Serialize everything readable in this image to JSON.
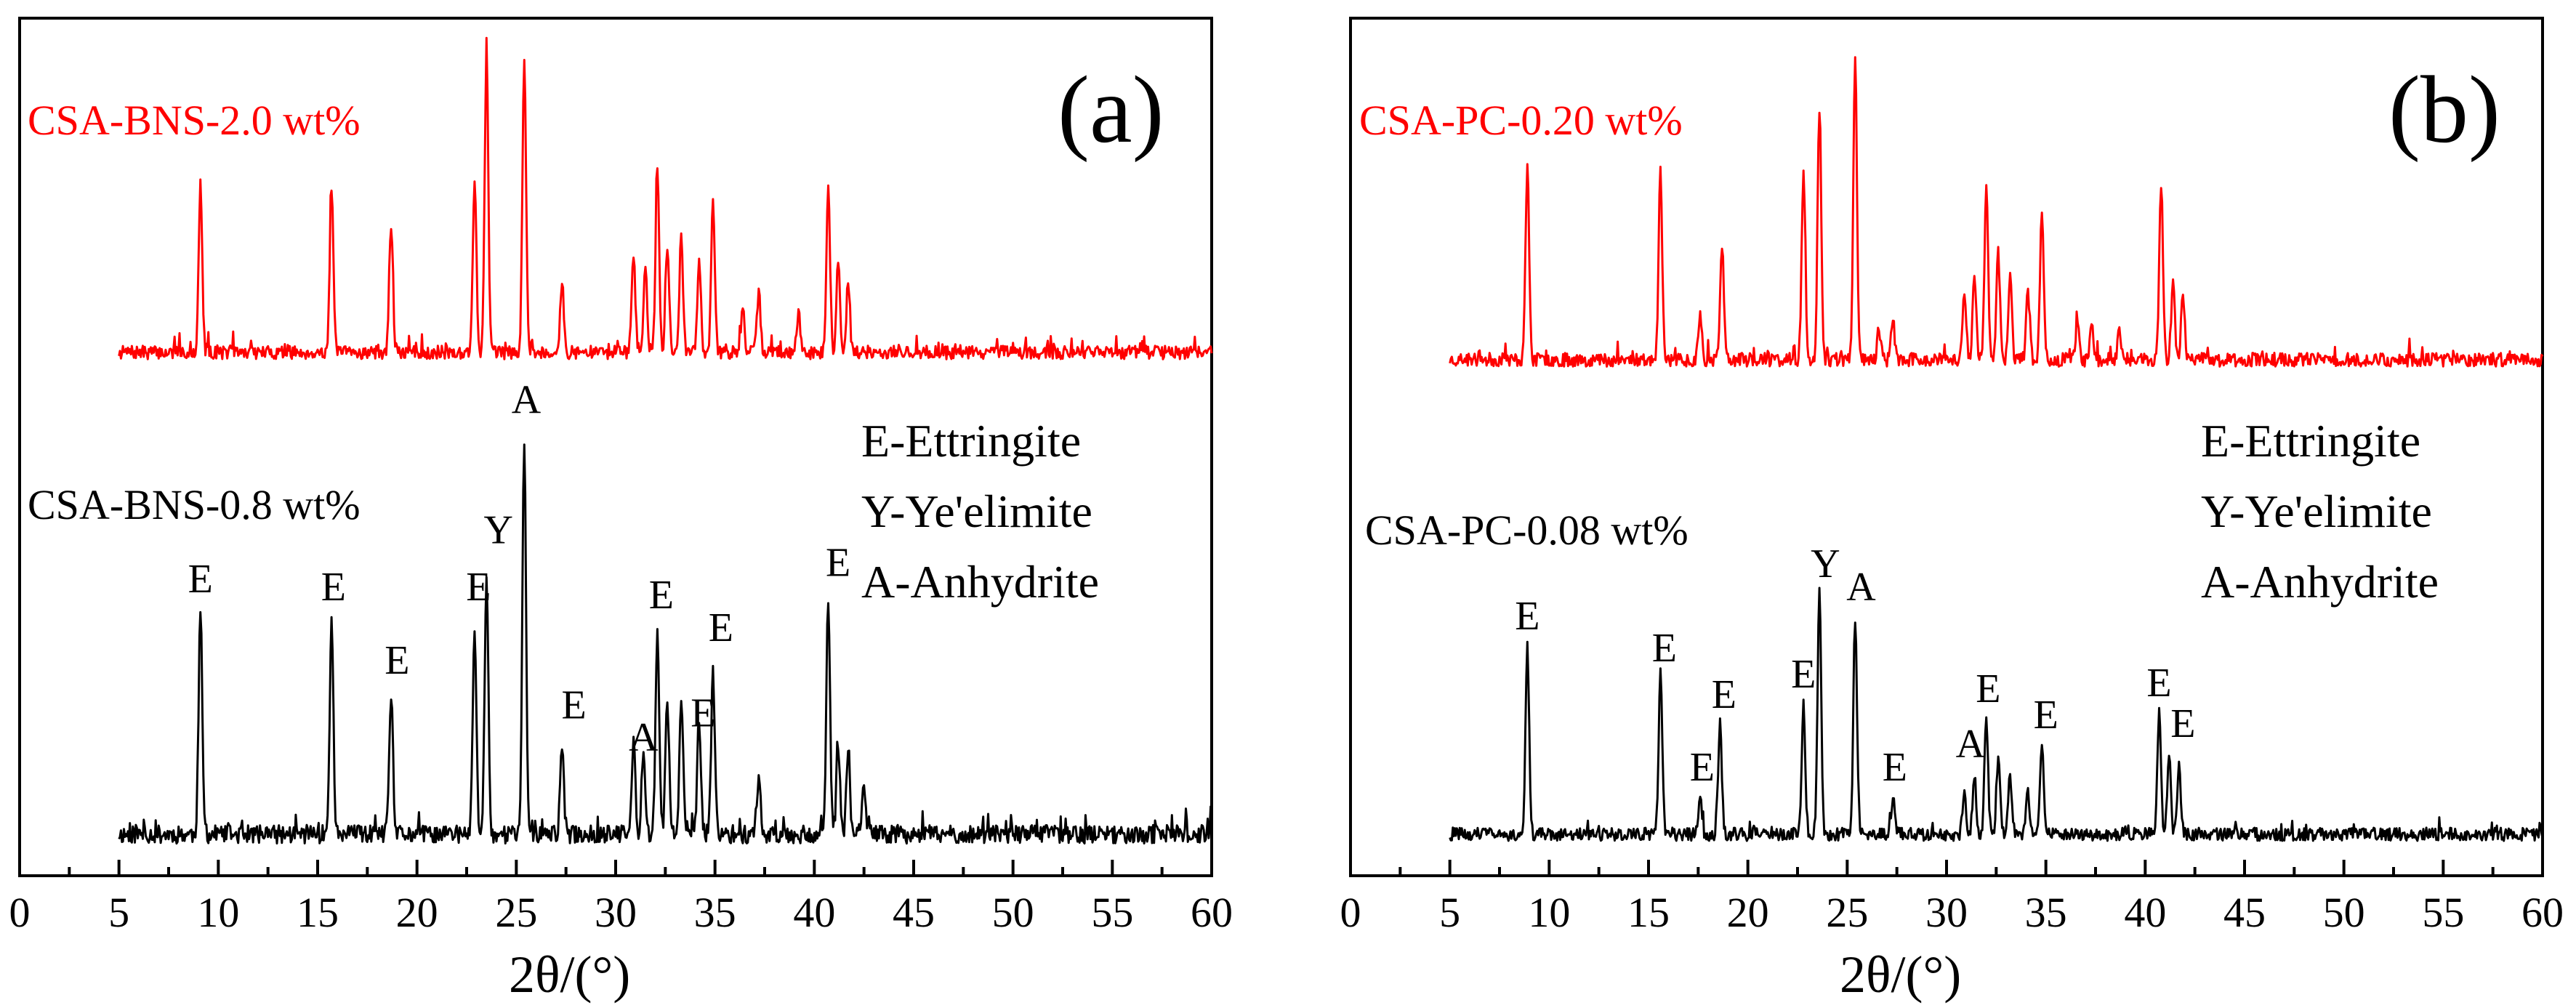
{
  "chart_data": [
    {
      "type": "line",
      "panel_label": "(a)",
      "xlabel": "2θ/(°)",
      "xlim": [
        0,
        60
      ],
      "x_ticks": [
        0,
        5,
        10,
        15,
        20,
        25,
        30,
        35,
        40,
        45,
        50,
        55,
        60
      ],
      "colors": {
        "top": "#ff0000",
        "bottom": "#000000"
      },
      "series": [
        {
          "name": "CSA-BNS-2.0 wt%",
          "role": "top",
          "peaks": [
            [
              9.1,
              0.55
            ],
            [
              15.7,
              0.55
            ],
            [
              18.7,
              0.43
            ],
            [
              22.9,
              0.58
            ],
            [
              23.5,
              1.0
            ],
            [
              25.4,
              1.0
            ],
            [
              27.3,
              0.23
            ],
            [
              30.9,
              0.33
            ],
            [
              31.5,
              0.28
            ],
            [
              32.1,
              0.63
            ],
            [
              32.6,
              0.35
            ],
            [
              33.3,
              0.38
            ],
            [
              34.2,
              0.31
            ],
            [
              34.9,
              0.52
            ],
            [
              36.4,
              0.14
            ],
            [
              37.2,
              0.2
            ],
            [
              39.2,
              0.13
            ],
            [
              40.7,
              0.55
            ],
            [
              41.2,
              0.3
            ],
            [
              41.7,
              0.22
            ]
          ],
          "seed": 7
        },
        {
          "name": "CSA-BNS-0.8 wt%",
          "role": "bottom",
          "peaks": [
            [
              9.1,
              0.55
            ],
            [
              15.7,
              0.53
            ],
            [
              18.7,
              0.34
            ],
            [
              22.9,
              0.51
            ],
            [
              23.5,
              0.65
            ],
            [
              25.4,
              0.97
            ],
            [
              27.3,
              0.22
            ],
            [
              30.9,
              0.22
            ],
            [
              31.4,
              0.22
            ],
            [
              32.1,
              0.5
            ],
            [
              32.6,
              0.33
            ],
            [
              33.3,
              0.35
            ],
            [
              34.2,
              0.28
            ],
            [
              34.9,
              0.4
            ],
            [
              37.2,
              0.14
            ],
            [
              40.7,
              0.58
            ],
            [
              41.2,
              0.22
            ],
            [
              41.7,
              0.2
            ],
            [
              42.5,
              0.12
            ]
          ],
          "seed": 11
        }
      ],
      "peak_labels": [
        {
          "text": "E",
          "x": 9.1,
          "y": 0.57
        },
        {
          "text": "E",
          "x": 15.8,
          "y": 0.55
        },
        {
          "text": "E",
          "x": 19.0,
          "y": 0.37
        },
        {
          "text": "E",
          "x": 23.1,
          "y": 0.55
        },
        {
          "text": "Y",
          "x": 24.1,
          "y": 0.69
        },
        {
          "text": "A",
          "x": 25.5,
          "y": 1.01
        },
        {
          "text": "E",
          "x": 27.9,
          "y": 0.26
        },
        {
          "text": "A",
          "x": 31.4,
          "y": 0.18
        },
        {
          "text": "E",
          "x": 32.3,
          "y": 0.53
        },
        {
          "text": "E",
          "x": 34.4,
          "y": 0.24
        },
        {
          "text": "E",
          "x": 35.3,
          "y": 0.45
        },
        {
          "text": "E",
          "x": 41.2,
          "y": 0.61
        }
      ]
    },
    {
      "type": "line",
      "panel_label": "(b)",
      "xlabel": "2θ/(°)",
      "xlim": [
        0,
        60
      ],
      "x_ticks": [
        0,
        5,
        10,
        15,
        20,
        25,
        30,
        35,
        40,
        45,
        50,
        55,
        60
      ],
      "colors": {
        "top": "#ff0000",
        "bottom": "#000000"
      },
      "series": [
        {
          "name": "CSA-PC-0.20 wt%",
          "role": "top",
          "peaks": [
            [
              8.9,
              0.63
            ],
            [
              15.6,
              0.61
            ],
            [
              17.6,
              0.14
            ],
            [
              18.7,
              0.38
            ],
            [
              22.8,
              0.62
            ],
            [
              23.6,
              0.81
            ],
            [
              25.4,
              1.0
            ],
            [
              26.6,
              0.1
            ],
            [
              27.3,
              0.13
            ],
            [
              30.9,
              0.23
            ],
            [
              31.4,
              0.27
            ],
            [
              32.0,
              0.56
            ],
            [
              32.6,
              0.35
            ],
            [
              33.2,
              0.27
            ],
            [
              34.1,
              0.22
            ],
            [
              34.8,
              0.48
            ],
            [
              36.6,
              0.12
            ],
            [
              37.3,
              0.13
            ],
            [
              38.7,
              0.1
            ],
            [
              40.8,
              0.58
            ],
            [
              41.4,
              0.24
            ],
            [
              41.9,
              0.22
            ]
          ],
          "seed": 23
        },
        {
          "name": "CSA-PC-0.08 wt%",
          "role": "bottom",
          "peaks": [
            [
              8.9,
              0.65
            ],
            [
              15.6,
              0.55
            ],
            [
              17.6,
              0.12
            ],
            [
              18.6,
              0.38
            ],
            [
              22.8,
              0.45
            ],
            [
              23.6,
              0.83
            ],
            [
              25.4,
              0.75
            ],
            [
              27.3,
              0.12
            ],
            [
              30.9,
              0.14
            ],
            [
              31.4,
              0.2
            ],
            [
              32.0,
              0.4
            ],
            [
              32.6,
              0.26
            ],
            [
              33.2,
              0.2
            ],
            [
              34.1,
              0.14
            ],
            [
              34.8,
              0.3
            ],
            [
              40.7,
              0.42
            ],
            [
              41.2,
              0.28
            ],
            [
              41.7,
              0.24
            ]
          ],
          "seed": 31
        }
      ],
      "peak_labels": [
        {
          "text": "E",
          "x": 8.9,
          "y": 0.67
        },
        {
          "text": "E",
          "x": 15.8,
          "y": 0.56
        },
        {
          "text": "E",
          "x": 17.7,
          "y": 0.15
        },
        {
          "text": "E",
          "x": 18.8,
          "y": 0.4
        },
        {
          "text": "E",
          "x": 22.8,
          "y": 0.47
        },
        {
          "text": "Y",
          "x": 23.9,
          "y": 0.85
        },
        {
          "text": "A",
          "x": 25.7,
          "y": 0.77
        },
        {
          "text": "E",
          "x": 27.4,
          "y": 0.15
        },
        {
          "text": "A",
          "x": 31.2,
          "y": 0.23
        },
        {
          "text": "E",
          "x": 32.1,
          "y": 0.42
        },
        {
          "text": "E",
          "x": 35.0,
          "y": 0.33
        },
        {
          "text": "E",
          "x": 40.7,
          "y": 0.44
        },
        {
          "text": "E",
          "x": 41.9,
          "y": 0.3
        }
      ]
    }
  ],
  "legend": {
    "lines": [
      "E-Ettringite",
      "Y-Ye'elimite",
      "A-Anhydrite"
    ]
  }
}
